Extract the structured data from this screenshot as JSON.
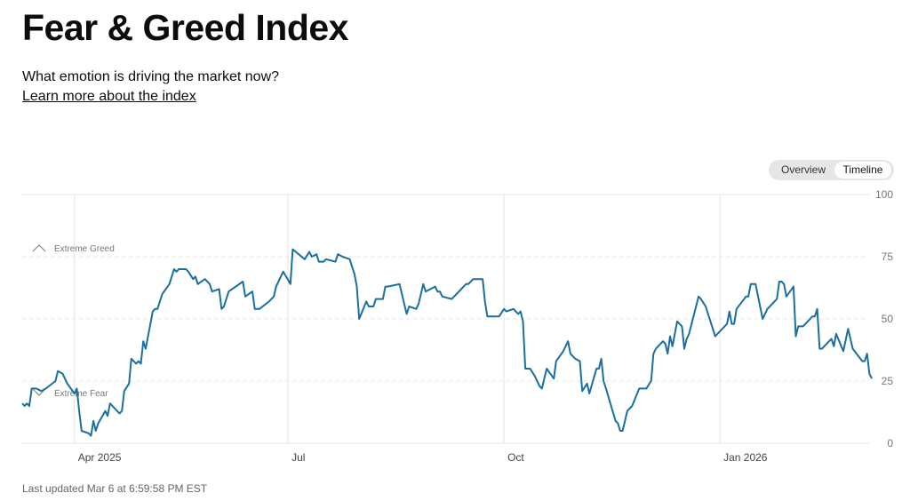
{
  "header": {
    "title": "Fear & Greed Index",
    "subtitle": "What emotion is driving the market now?",
    "learn_more": "Learn more about the index"
  },
  "toggle": {
    "overview": "Overview",
    "timeline": "Timeline",
    "selected": "Timeline"
  },
  "footer": {
    "last_updated": "Last updated Mar 6 at 6:59:58 PM EST"
  },
  "colors": {
    "line": "#1a6fa0",
    "grid": "#e4e4e4",
    "label": "#777777"
  },
  "chart_data": {
    "type": "line",
    "title": "Fear & Greed Index",
    "xlabel": "",
    "ylabel": "",
    "ylim": [
      0,
      100
    ],
    "xlim": [
      0,
      358
    ],
    "x_unit": "days from chart start",
    "yticks": [
      {
        "value": 100,
        "label": "100"
      },
      {
        "value": 75,
        "label": "75"
      },
      {
        "value": 50,
        "label": "50"
      },
      {
        "value": 25,
        "label": "25"
      },
      {
        "value": 0,
        "label": "0"
      }
    ],
    "xticks": [
      {
        "x": 22,
        "label": "Apr 2025"
      },
      {
        "x": 112,
        "label": "Jul"
      },
      {
        "x": 203,
        "label": "Oct"
      },
      {
        "x": 294,
        "label": "Jan 2026"
      }
    ],
    "annotations": [
      {
        "label": "Extreme Greed",
        "value": 75,
        "icon": "chevron-up"
      },
      {
        "label": "Extreme Fear",
        "value": 25,
        "icon": "chevron-down"
      }
    ],
    "grid": true,
    "series": [
      {
        "name": "Fear & Greed Index",
        "points": [
          [
            0,
            16
          ],
          [
            1,
            15
          ],
          [
            2,
            16
          ],
          [
            3,
            15
          ],
          [
            4,
            22
          ],
          [
            6,
            22
          ],
          [
            8,
            21
          ],
          [
            10,
            22
          ],
          [
            14,
            25
          ],
          [
            15,
            29
          ],
          [
            17,
            28
          ],
          [
            19,
            24
          ],
          [
            22,
            20
          ],
          [
            23,
            22
          ],
          [
            24,
            13
          ],
          [
            25,
            5
          ],
          [
            28,
            4
          ],
          [
            29,
            3
          ],
          [
            30,
            9
          ],
          [
            31,
            5
          ],
          [
            32,
            8
          ],
          [
            35,
            13
          ],
          [
            36,
            11
          ],
          [
            37,
            16
          ],
          [
            41,
            12
          ],
          [
            42,
            13
          ],
          [
            43,
            21
          ],
          [
            45,
            24
          ],
          [
            46,
            34
          ],
          [
            48,
            32
          ],
          [
            49,
            33
          ],
          [
            50,
            32
          ],
          [
            51,
            41
          ],
          [
            52,
            38
          ],
          [
            55,
            53
          ],
          [
            56,
            54
          ],
          [
            57,
            54
          ],
          [
            59,
            60
          ],
          [
            62,
            64
          ],
          [
            64,
            70
          ],
          [
            65,
            69
          ],
          [
            66,
            70
          ],
          [
            69,
            70
          ],
          [
            70,
            69
          ],
          [
            72,
            66
          ],
          [
            73,
            67
          ],
          [
            74,
            64
          ],
          [
            77,
            66
          ],
          [
            79,
            64
          ],
          [
            80,
            61
          ],
          [
            83,
            62
          ],
          [
            84,
            54
          ],
          [
            85,
            55
          ],
          [
            87,
            61
          ],
          [
            93,
            65
          ],
          [
            94,
            59
          ],
          [
            97,
            61
          ],
          [
            98,
            54
          ],
          [
            100,
            54
          ],
          [
            104,
            57
          ],
          [
            106,
            59
          ],
          [
            107,
            63
          ],
          [
            110,
            69
          ],
          [
            113,
            64
          ],
          [
            114,
            78
          ],
          [
            119,
            74
          ],
          [
            121,
            77
          ],
          [
            122,
            75
          ],
          [
            124,
            76
          ],
          [
            125,
            73
          ],
          [
            127,
            73
          ],
          [
            128,
            74
          ],
          [
            132,
            73
          ],
          [
            133,
            76
          ],
          [
            135,
            75
          ],
          [
            138,
            74
          ],
          [
            140,
            68
          ],
          [
            141,
            63
          ],
          [
            142,
            50
          ],
          [
            145,
            57
          ],
          [
            146,
            55
          ],
          [
            148,
            55
          ],
          [
            149,
            58
          ],
          [
            152,
            58
          ],
          [
            153,
            63
          ],
          [
            154,
            63
          ],
          [
            159,
            64
          ],
          [
            161,
            56
          ],
          [
            162,
            52
          ],
          [
            163,
            55
          ],
          [
            166,
            54
          ],
          [
            167,
            56
          ],
          [
            169,
            64
          ],
          [
            170,
            61
          ],
          [
            174,
            63
          ],
          [
            175,
            61
          ],
          [
            176,
            61
          ],
          [
            177,
            59
          ],
          [
            181,
            58
          ],
          [
            183,
            60
          ],
          [
            187,
            64
          ],
          [
            188,
            64
          ],
          [
            190,
            66
          ],
          [
            194,
            66
          ],
          [
            195,
            57
          ],
          [
            196,
            51
          ],
          [
            197,
            51
          ],
          [
            201,
            51
          ],
          [
            203,
            54
          ],
          [
            204,
            53
          ],
          [
            207,
            54
          ],
          [
            209,
            52
          ],
          [
            210,
            53
          ],
          [
            211,
            49
          ],
          [
            212,
            30
          ],
          [
            214,
            30
          ],
          [
            216,
            27
          ],
          [
            218,
            23
          ],
          [
            219,
            22
          ],
          [
            221,
            30
          ],
          [
            224,
            26
          ],
          [
            225,
            33
          ],
          [
            228,
            37
          ],
          [
            230,
            41
          ],
          [
            231,
            36
          ],
          [
            233,
            34
          ],
          [
            235,
            33
          ],
          [
            236,
            21
          ],
          [
            238,
            24
          ],
          [
            239,
            20
          ],
          [
            242,
            30
          ],
          [
            243,
            30
          ],
          [
            244,
            34
          ],
          [
            245,
            25
          ],
          [
            246,
            22
          ],
          [
            250,
            9
          ],
          [
            251,
            8
          ],
          [
            252,
            5
          ],
          [
            253,
            5
          ],
          [
            255,
            13
          ],
          [
            257,
            15
          ],
          [
            260,
            22
          ],
          [
            263,
            22
          ],
          [
            265,
            25
          ],
          [
            266,
            36
          ],
          [
            267,
            38
          ],
          [
            270,
            41
          ],
          [
            271,
            40
          ],
          [
            272,
            36
          ],
          [
            273,
            43
          ],
          [
            274,
            39
          ],
          [
            276,
            49
          ],
          [
            278,
            47
          ],
          [
            279,
            38
          ],
          [
            280,
            42
          ],
          [
            281,
            44
          ],
          [
            285,
            59
          ],
          [
            286,
            58
          ],
          [
            288,
            55
          ],
          [
            292,
            43
          ],
          [
            297,
            48
          ],
          [
            298,
            53
          ],
          [
            299,
            48
          ],
          [
            300,
            48
          ],
          [
            301,
            54
          ],
          [
            305,
            59
          ],
          [
            306,
            59
          ],
          [
            307,
            64
          ],
          [
            309,
            64
          ],
          [
            312,
            50
          ],
          [
            314,
            54
          ],
          [
            315,
            55
          ],
          [
            318,
            58
          ],
          [
            319,
            65
          ],
          [
            320,
            65
          ],
          [
            321,
            64
          ],
          [
            322,
            59
          ],
          [
            325,
            63
          ],
          [
            326,
            43
          ],
          [
            327,
            47
          ],
          [
            329,
            47
          ],
          [
            333,
            51
          ],
          [
            334,
            51
          ],
          [
            335,
            54
          ],
          [
            336,
            38
          ],
          [
            337,
            38
          ],
          [
            341,
            42
          ],
          [
            342,
            39
          ],
          [
            343,
            44
          ],
          [
            346,
            37
          ],
          [
            348,
            46
          ],
          [
            350,
            38
          ],
          [
            354,
            33
          ],
          [
            355,
            33
          ],
          [
            356,
            36
          ],
          [
            357,
            28
          ],
          [
            358,
            26
          ]
        ]
      }
    ]
  }
}
